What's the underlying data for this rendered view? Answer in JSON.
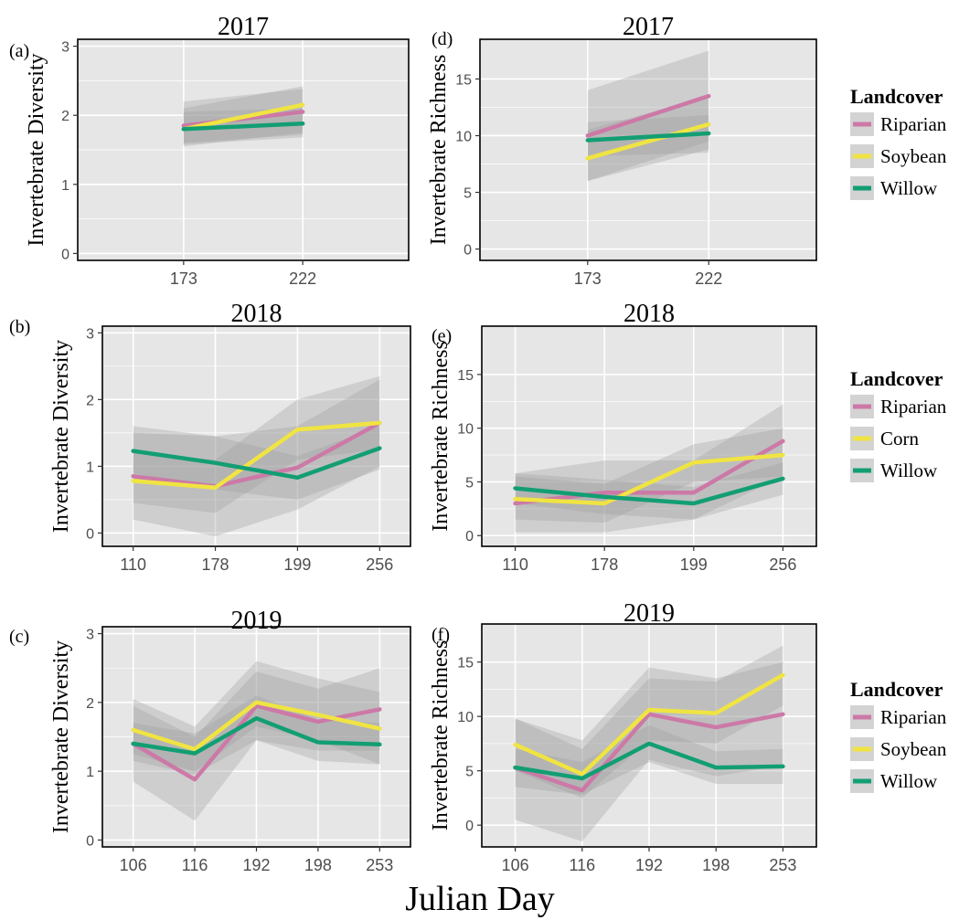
{
  "colors": {
    "Riparian": "#cc79a7",
    "Soybean": "#f0e442",
    "Corn": "#f0e442",
    "Willow": "#129e73",
    "panel_bg": "#e6e6e6",
    "grid": "#ffffff",
    "ribbon": "#bdbdbd"
  },
  "figure": {
    "x_caption": "Julian Day"
  },
  "chart_data": [
    {
      "type": "line",
      "panel_tag": "(a)",
      "title": "2017",
      "ylabel": "Invertebrate Diversity",
      "xlabel": "",
      "categories": [
        "173",
        "222"
      ],
      "ylim": [
        -0.1,
        3.1
      ],
      "yticks": [
        0,
        1,
        2,
        3
      ],
      "grid": true,
      "series": [
        {
          "name": "Riparian",
          "values": [
            1.85,
            2.05
          ],
          "lower": [
            1.6,
            1.72
          ],
          "upper": [
            2.2,
            2.38
          ]
        },
        {
          "name": "Soybean",
          "values": [
            1.8,
            2.15
          ],
          "lower": [
            1.55,
            1.75
          ],
          "upper": [
            2.1,
            2.42
          ]
        },
        {
          "name": "Willow",
          "values": [
            1.8,
            1.88
          ],
          "lower": [
            1.58,
            1.68
          ],
          "upper": [
            2.05,
            2.1
          ]
        }
      ]
    },
    {
      "type": "line",
      "panel_tag": "(b)",
      "title": "2018",
      "ylabel": "Invertebrate Diversity",
      "xlabel": "",
      "categories": [
        "110",
        "178",
        "199",
        "256"
      ],
      "ylim": [
        -0.2,
        3.1
      ],
      "yticks": [
        0,
        1,
        2,
        3
      ],
      "grid": true,
      "series": [
        {
          "name": "Riparian",
          "values": [
            0.85,
            0.7,
            0.98,
            1.65
          ],
          "lower": [
            0.2,
            -0.05,
            0.35,
            1.0
          ],
          "upper": [
            1.5,
            1.45,
            1.6,
            2.3
          ]
        },
        {
          "name": "Corn",
          "values": [
            0.78,
            0.68,
            1.55,
            1.65
          ],
          "lower": [
            0.45,
            0.3,
            1.1,
            1.25
          ],
          "upper": [
            1.2,
            1.1,
            2.0,
            2.35
          ]
        },
        {
          "name": "Willow",
          "values": [
            1.23,
            1.05,
            0.83,
            1.27
          ],
          "lower": [
            0.9,
            0.65,
            0.5,
            0.95
          ],
          "upper": [
            1.6,
            1.45,
            1.15,
            1.6
          ]
        }
      ]
    },
    {
      "type": "line",
      "panel_tag": "(c)",
      "title": "2019",
      "ylabel": "Invertebrate Diversity",
      "xlabel": "",
      "categories": [
        "106",
        "116",
        "192",
        "198",
        "253"
      ],
      "ylim": [
        -0.1,
        3.1
      ],
      "yticks": [
        0,
        1,
        2,
        3
      ],
      "grid": true,
      "series": [
        {
          "name": "Riparian",
          "values": [
            1.4,
            0.88,
            1.95,
            1.72,
            1.9
          ],
          "lower": [
            0.85,
            0.28,
            1.45,
            1.3,
            1.3
          ],
          "upper": [
            1.95,
            1.5,
            2.45,
            2.2,
            2.5
          ]
        },
        {
          "name": "Soybean",
          "values": [
            1.6,
            1.32,
            2.0,
            1.82,
            1.62
          ],
          "lower": [
            1.25,
            1.0,
            1.65,
            1.45,
            1.1
          ],
          "upper": [
            2.05,
            1.65,
            2.6,
            2.35,
            2.15
          ]
        },
        {
          "name": "Willow",
          "values": [
            1.4,
            1.26,
            1.77,
            1.42,
            1.39
          ],
          "lower": [
            1.15,
            0.95,
            1.45,
            1.15,
            1.1
          ],
          "upper": [
            1.7,
            1.55,
            2.1,
            1.75,
            1.7
          ]
        }
      ]
    },
    {
      "type": "line",
      "panel_tag": "(d)",
      "title": "2017",
      "ylabel": "Invertebrate Richness",
      "xlabel": "",
      "categories": [
        "173",
        "222"
      ],
      "ylim": [
        -1,
        18.5
      ],
      "yticks": [
        0,
        5,
        10,
        15
      ],
      "grid": true,
      "series": [
        {
          "name": "Riparian",
          "values": [
            10.0,
            13.5
          ],
          "lower": [
            6.0,
            9.5
          ],
          "upper": [
            14.0,
            17.5
          ]
        },
        {
          "name": "Soybean",
          "values": [
            8.0,
            11.0
          ],
          "lower": [
            6.0,
            8.8
          ],
          "upper": [
            10.5,
            13.5
          ]
        },
        {
          "name": "Willow",
          "values": [
            9.6,
            10.2
          ],
          "lower": [
            8.2,
            8.5
          ],
          "upper": [
            11.2,
            11.8
          ]
        }
      ]
    },
    {
      "type": "line",
      "panel_tag": "(e)",
      "title": "2018",
      "ylabel": "Invertebrate Richness",
      "xlabel": "",
      "categories": [
        "110",
        "178",
        "199",
        "256"
      ],
      "ylim": [
        -1,
        19.5
      ],
      "yticks": [
        0,
        5,
        10,
        15
      ],
      "grid": true,
      "series": [
        {
          "name": "Riparian",
          "values": [
            3.0,
            4.0,
            4.0,
            8.8
          ],
          "lower": [
            0.3,
            0.3,
            1.5,
            5.5
          ],
          "upper": [
            5.8,
            7.0,
            7.0,
            12.2
          ]
        },
        {
          "name": "Corn",
          "values": [
            3.4,
            3.0,
            6.8,
            7.5
          ],
          "lower": [
            1.5,
            1.2,
            5.0,
            5.5
          ],
          "upper": [
            5.5,
            4.8,
            8.5,
            10.0
          ]
        },
        {
          "name": "Willow",
          "values": [
            4.4,
            3.6,
            3.0,
            5.3
          ],
          "lower": [
            3.0,
            2.0,
            1.5,
            3.8
          ],
          "upper": [
            5.8,
            5.2,
            4.5,
            6.8
          ]
        }
      ]
    },
    {
      "type": "line",
      "panel_tag": "(f)",
      "title": "2019",
      "ylabel": "Invertebrate Richness",
      "xlabel": "",
      "categories": [
        "106",
        "116",
        "192",
        "198",
        "253"
      ],
      "ylim": [
        -2,
        18.5
      ],
      "yticks": [
        0,
        5,
        10,
        15
      ],
      "grid": true,
      "series": [
        {
          "name": "Riparian",
          "values": [
            5.3,
            3.2,
            10.2,
            9.0,
            10.2
          ],
          "lower": [
            0.5,
            -1.5,
            6.0,
            4.5,
            5.5
          ],
          "upper": [
            9.8,
            7.8,
            14.5,
            13.5,
            15.0
          ]
        },
        {
          "name": "Soybean",
          "values": [
            7.4,
            4.7,
            10.6,
            10.3,
            13.8
          ],
          "lower": [
            5.0,
            2.5,
            7.8,
            7.5,
            11.0
          ],
          "upper": [
            9.8,
            7.0,
            13.5,
            13.2,
            16.5
          ]
        },
        {
          "name": "Willow",
          "values": [
            5.3,
            4.3,
            7.5,
            5.3,
            5.4
          ],
          "lower": [
            3.5,
            2.8,
            5.8,
            3.8,
            3.8
          ],
          "upper": [
            7.0,
            5.8,
            9.2,
            6.8,
            7.0
          ]
        }
      ]
    }
  ],
  "legends": [
    {
      "title": "Landcover",
      "items": [
        "Riparian",
        "Soybean",
        "Willow"
      ]
    },
    {
      "title": "Landcover",
      "items": [
        "Riparian",
        "Corn",
        "Willow"
      ]
    },
    {
      "title": "Landcover",
      "items": [
        "Riparian",
        "Soybean",
        "Willow"
      ]
    }
  ]
}
